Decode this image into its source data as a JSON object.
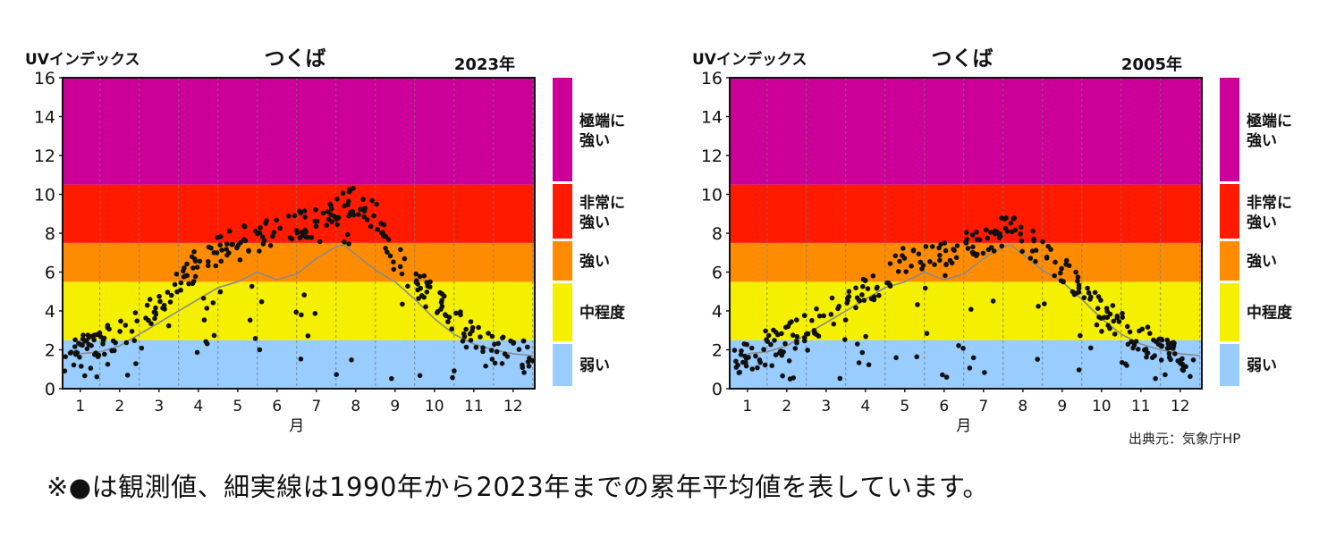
{
  "chart_data": [
    {
      "type": "scatter",
      "title": "つくば",
      "year_label": "2023年",
      "ylabel": "UVインデックス",
      "xlabel": "月",
      "ylim": [
        0,
        16
      ],
      "yticks": [
        "0",
        "2",
        "4",
        "6",
        "8",
        "10",
        "12",
        "14",
        "16"
      ],
      "xticks": [
        "1",
        "2",
        "3",
        "4",
        "5",
        "6",
        "7",
        "8",
        "9",
        "10",
        "11",
        "12"
      ],
      "bands": [
        {
          "label": "弱い",
          "from": 0,
          "to": 2.5,
          "color": "#99ccff"
        },
        {
          "label": "中程度",
          "from": 2.5,
          "to": 5.5,
          "color": "#f5f000"
        },
        {
          "label": "強い",
          "from": 5.5,
          "to": 7.5,
          "color": "#ff8c00"
        },
        {
          "label": "非常に強い",
          "from": 7.5,
          "to": 10.5,
          "color": "#ff1a00"
        },
        {
          "label": "極端に強い",
          "from": 10.5,
          "to": 16,
          "color": "#cc0099"
        }
      ],
      "legend": [
        {
          "label": "極端に強い",
          "color": "#cc0099"
        },
        {
          "label": "非常に強い",
          "color": "#ff1a00"
        },
        {
          "label": "強い",
          "color": "#ff8c00"
        },
        {
          "label": "中程度",
          "color": "#f5f000"
        },
        {
          "label": "弱い",
          "color": "#99ccff"
        }
      ],
      "average_line": {
        "x": [
          1,
          1.5,
          2,
          2.5,
          3,
          3.5,
          4,
          4.5,
          5,
          5.5,
          6,
          6.5,
          7,
          7.5,
          7.7,
          8,
          8.5,
          9,
          9.5,
          10,
          10.5,
          11,
          11.5,
          12,
          12.5
        ],
        "y": [
          1.8,
          1.9,
          2.2,
          2.8,
          3.4,
          4.0,
          4.6,
          5.2,
          5.5,
          6.0,
          5.6,
          5.9,
          6.7,
          7.3,
          7.4,
          6.9,
          6.1,
          5.5,
          4.6,
          3.6,
          2.8,
          2.3,
          2.0,
          1.8,
          1.7
        ]
      },
      "seed": 11,
      "scatter_profile": [
        [
          1,
          2.0
        ],
        [
          2,
          2.8
        ],
        [
          3,
          4.2
        ],
        [
          4,
          6.6
        ],
        [
          5,
          7.6
        ],
        [
          6,
          8.2
        ],
        [
          7,
          8.6
        ],
        [
          8,
          9.8
        ],
        [
          8.6,
          8.8
        ],
        [
          9,
          6.8
        ],
        [
          10,
          4.6
        ],
        [
          11,
          2.6
        ],
        [
          12,
          1.8
        ],
        [
          12.5,
          1.8
        ]
      ]
    },
    {
      "type": "scatter",
      "title": "つくば",
      "year_label": "2005年",
      "ylabel": "UVインデックス",
      "xlabel": "月",
      "ylim": [
        0,
        16
      ],
      "yticks": [
        "0",
        "2",
        "4",
        "6",
        "8",
        "10",
        "12",
        "14",
        "16"
      ],
      "xticks": [
        "1",
        "2",
        "3",
        "4",
        "5",
        "6",
        "7",
        "8",
        "9",
        "10",
        "11",
        "12"
      ],
      "bands": [
        {
          "label": "弱い",
          "from": 0,
          "to": 2.5,
          "color": "#99ccff"
        },
        {
          "label": "中程度",
          "from": 2.5,
          "to": 5.5,
          "color": "#f5f000"
        },
        {
          "label": "強い",
          "from": 5.5,
          "to": 7.5,
          "color": "#ff8c00"
        },
        {
          "label": "非常に強い",
          "from": 7.5,
          "to": 10.5,
          "color": "#ff1a00"
        },
        {
          "label": "極端に強い",
          "from": 10.5,
          "to": 16,
          "color": "#cc0099"
        }
      ],
      "legend": [
        {
          "label": "極端に強い",
          "color": "#cc0099"
        },
        {
          "label": "非常に強い",
          "color": "#ff1a00"
        },
        {
          "label": "強い",
          "color": "#ff8c00"
        },
        {
          "label": "中程度",
          "color": "#f5f000"
        },
        {
          "label": "弱い",
          "color": "#99ccff"
        }
      ],
      "average_line": {
        "x": [
          1,
          1.5,
          2,
          2.5,
          3,
          3.5,
          4,
          4.5,
          5,
          5.5,
          6,
          6.5,
          7,
          7.5,
          7.7,
          8,
          8.5,
          9,
          9.5,
          10,
          10.5,
          11,
          11.5,
          12,
          12.5
        ],
        "y": [
          1.8,
          1.9,
          2.2,
          2.8,
          3.4,
          4.0,
          4.6,
          5.2,
          5.5,
          6.0,
          5.6,
          5.9,
          6.7,
          7.3,
          7.4,
          6.9,
          6.1,
          5.5,
          4.6,
          3.6,
          2.8,
          2.3,
          2.0,
          1.8,
          1.7
        ]
      },
      "seed": 29,
      "scatter_profile": [
        [
          1,
          2.0
        ],
        [
          2,
          2.6
        ],
        [
          3,
          3.8
        ],
        [
          4,
          5.0
        ],
        [
          5,
          6.6
        ],
        [
          6,
          7.2
        ],
        [
          7,
          7.6
        ],
        [
          7.6,
          8.4
        ],
        [
          8,
          7.8
        ],
        [
          9,
          6.2
        ],
        [
          10,
          4.2
        ],
        [
          11,
          2.6
        ],
        [
          12,
          1.8
        ],
        [
          12.5,
          1.9
        ]
      ]
    }
  ],
  "source_note": "出典元：気象庁HP",
  "footnote": "※●は観測値、細実線は1990年から2023年までの累年平均値を表しています。"
}
